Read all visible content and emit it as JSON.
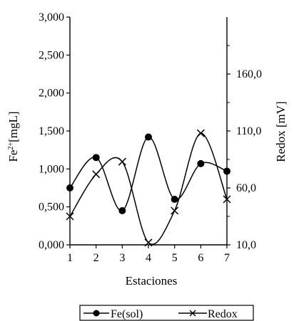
{
  "chart_data": {
    "type": "line",
    "categories": [
      "1",
      "2",
      "3",
      "4",
      "5",
      "6",
      "7"
    ],
    "xlabel": "Estaciones",
    "ylabel_left": "Fe2+[mgL]",
    "ylabel_right": "Redox [mV]",
    "ylim_left": [
      0,
      3
    ],
    "ylim_right": [
      10,
      210
    ],
    "left_ticks": [
      "0,000",
      "0,500",
      "1,000",
      "1,500",
      "2,000",
      "2,500",
      "3,000"
    ],
    "right_ticks": [
      "10,0",
      "60,0",
      "110,0",
      "160,0"
    ],
    "right_tick_values": [
      10,
      60,
      110,
      160
    ],
    "grid": false,
    "legend_position": "bottom",
    "series": [
      {
        "name": "Fe(sol)",
        "axis": "left",
        "marker": "circle",
        "values": [
          0.75,
          1.15,
          0.45,
          1.42,
          0.6,
          1.07,
          0.97
        ]
      },
      {
        "name": "Redox",
        "axis": "right",
        "marker": "x",
        "values": [
          35,
          72,
          83,
          12,
          40,
          108,
          50
        ]
      }
    ]
  }
}
